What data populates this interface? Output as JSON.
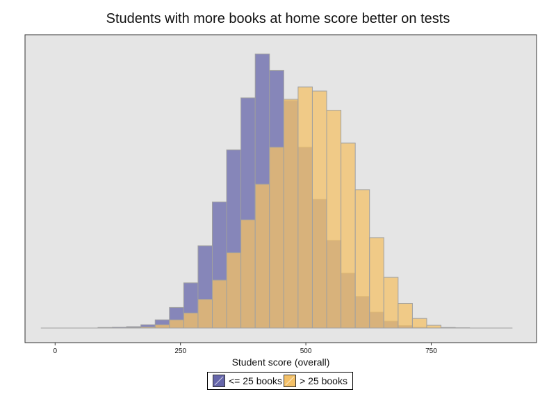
{
  "chart_data": {
    "type": "bar",
    "title": "Students with more books at home score better on tests",
    "xlabel": "Student score (overall)",
    "ylabel": "",
    "xlim": [
      -60,
      960
    ],
    "xticks": [
      0,
      250,
      500,
      750
    ],
    "bin_width": 28.5,
    "grid": false,
    "legend_position": "bottom-center",
    "bin_starts": [
      -28.5,
      0,
      28.5,
      57,
      85.5,
      114,
      142.5,
      171,
      199.5,
      228,
      256.5,
      285,
      313.5,
      342,
      370.5,
      399,
      427.5,
      456,
      484.5,
      513,
      541.5,
      570,
      598.5,
      627,
      655.5,
      684,
      712.5,
      741,
      769.5,
      798,
      826.5,
      855,
      883.5
    ],
    "series": [
      {
        "name": "<= 25 books",
        "color": "#6666aa",
        "values": [
          0,
          0,
          0,
          0,
          0.2,
          0.3,
          0.5,
          1.2,
          3,
          7.5,
          16.5,
          30,
          46,
          65,
          84,
          100,
          94,
          83,
          66,
          47,
          32,
          20,
          11.5,
          5.8,
          2.5,
          0.9,
          0.3,
          0.1,
          0,
          0,
          0,
          0,
          0
        ]
      },
      {
        "name": "> 25 books",
        "color": "#f3c067",
        "values": [
          0,
          0,
          0,
          0,
          0,
          0,
          0.2,
          0.4,
          1.2,
          3,
          5.5,
          10.5,
          17.5,
          27.5,
          39.5,
          52.5,
          66,
          83.5,
          88,
          86.5,
          79.5,
          67.5,
          50.5,
          33,
          18.5,
          9,
          3.5,
          1,
          0.2,
          0.1,
          0,
          0,
          0
        ]
      }
    ],
    "ylim": [
      0,
      104
    ]
  }
}
